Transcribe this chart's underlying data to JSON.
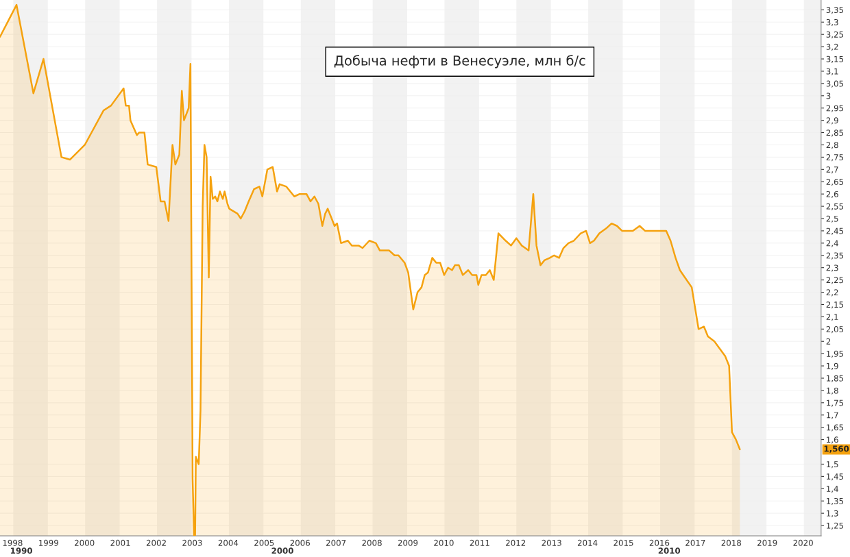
{
  "chart_data": {
    "type": "area",
    "title": "Добыча нефти в Венесуэле, млн б/с",
    "x": [
      1997.65,
      1998.11,
      1998.58,
      1998.86,
      1999.36,
      1999.6,
      2000.01,
      2000.53,
      2000.74,
      2001.09,
      2001.15,
      2001.24,
      2001.28,
      2001.46,
      2001.52,
      2001.67,
      2001.76,
      2002.0,
      2002.12,
      2002.23,
      2002.34,
      2002.45,
      2002.53,
      2002.64,
      2002.71,
      2002.77,
      2002.9,
      2002.95,
      2003.01,
      2003.05,
      2003.08,
      2003.1,
      2003.18,
      2003.23,
      2003.29,
      2003.34,
      2003.4,
      2003.46,
      2003.51,
      2003.57,
      2003.64,
      2003.7,
      2003.77,
      2003.85,
      2003.9,
      2003.98,
      2004.03,
      2004.26,
      2004.35,
      2004.46,
      2004.57,
      2004.72,
      2004.87,
      2004.95,
      2005.09,
      2005.24,
      2005.36,
      2005.43,
      2005.62,
      2005.84,
      2005.99,
      2006.18,
      2006.29,
      2006.4,
      2006.51,
      2006.62,
      2006.7,
      2006.77,
      2006.88,
      2006.96,
      2007.03,
      2007.14,
      2007.33,
      2007.44,
      2007.63,
      2007.74,
      2007.93,
      2008.11,
      2008.22,
      2008.48,
      2008.63,
      2008.74,
      2008.91,
      2009.01,
      2009.15,
      2009.27,
      2009.38,
      2009.47,
      2009.56,
      2009.68,
      2009.79,
      2009.9,
      2010.01,
      2010.12,
      2010.23,
      2010.31,
      2010.42,
      2010.53,
      2010.68,
      2010.79,
      2010.91,
      2010.96,
      2011.05,
      2011.17,
      2011.28,
      2011.39,
      2011.52,
      2011.72,
      2011.87,
      2012.02,
      2012.17,
      2012.36,
      2012.49,
      2012.58,
      2012.69,
      2012.8,
      2012.95,
      2013.07,
      2013.21,
      2013.33,
      2013.47,
      2013.62,
      2013.81,
      2013.96,
      2014.07,
      2014.18,
      2014.33,
      2014.52,
      2014.67,
      2014.82,
      2014.96,
      2015.15,
      2015.26,
      2015.45,
      2015.6,
      2015.75,
      2015.86,
      2015.97,
      2016.12,
      2016.19,
      2016.31,
      2016.45,
      2016.57,
      2016.71,
      2016.9,
      2017.09,
      2017.24,
      2017.35,
      2017.53,
      2017.68,
      2017.83,
      2017.94,
      2018.02,
      2018.13,
      2018.24
    ],
    "series": [
      {
        "color": "#f5a20f",
        "values": [
          3.24,
          3.37,
          3.01,
          3.15,
          2.75,
          2.74,
          2.8,
          2.94,
          2.96,
          3.03,
          2.96,
          2.96,
          2.9,
          2.84,
          2.85,
          2.85,
          2.72,
          2.71,
          2.57,
          2.57,
          2.49,
          2.8,
          2.72,
          2.76,
          3.02,
          2.9,
          2.95,
          3.13,
          1.44,
          1.21,
          1.21,
          1.53,
          1.5,
          1.72,
          2.55,
          2.8,
          2.75,
          2.26,
          2.67,
          2.58,
          2.59,
          2.57,
          2.61,
          2.58,
          2.61,
          2.56,
          2.54,
          2.52,
          2.5,
          2.53,
          2.57,
          2.62,
          2.63,
          2.59,
          2.7,
          2.71,
          2.61,
          2.64,
          2.63,
          2.59,
          2.6,
          2.6,
          2.57,
          2.59,
          2.56,
          2.47,
          2.52,
          2.54,
          2.5,
          2.47,
          2.48,
          2.4,
          2.41,
          2.39,
          2.39,
          2.38,
          2.41,
          2.4,
          2.37,
          2.37,
          2.35,
          2.35,
          2.32,
          2.28,
          2.13,
          2.2,
          2.22,
          2.27,
          2.28,
          2.34,
          2.32,
          2.32,
          2.27,
          2.3,
          2.29,
          2.31,
          2.31,
          2.27,
          2.29,
          2.27,
          2.27,
          2.23,
          2.27,
          2.27,
          2.29,
          2.25,
          2.44,
          2.41,
          2.39,
          2.42,
          2.39,
          2.37,
          2.6,
          2.39,
          2.31,
          2.33,
          2.34,
          2.35,
          2.34,
          2.38,
          2.4,
          2.41,
          2.44,
          2.45,
          2.4,
          2.41,
          2.44,
          2.46,
          2.48,
          2.47,
          2.45,
          2.45,
          2.45,
          2.47,
          2.45,
          2.45,
          2.45,
          2.45,
          2.45,
          2.45,
          2.41,
          2.34,
          2.29,
          2.26,
          2.22,
          2.05,
          2.06,
          2.02,
          2.0,
          1.97,
          1.94,
          1.9,
          1.63,
          1.6,
          1.56
        ]
      }
    ],
    "xlim": [
      1997.65,
      2020.5
    ],
    "xticks": [
      1998,
      1999,
      2000,
      2001,
      2002,
      2003,
      2004,
      2005,
      2006,
      2007,
      2008,
      2009,
      2010,
      2011,
      2012,
      2013,
      2014,
      2015,
      2016,
      2017,
      2018,
      2019,
      2020
    ],
    "ylim": [
      1.208,
      3.39
    ],
    "yticks": [
      {
        "value": 1.25,
        "label": "1,25"
      },
      {
        "value": 1.3,
        "label": "1,3"
      },
      {
        "value": 1.35,
        "label": "1,35"
      },
      {
        "value": 1.4,
        "label": "1,4"
      },
      {
        "value": 1.45,
        "label": "1,45"
      },
      {
        "value": 1.5,
        "label": "1,5"
      },
      {
        "value": 1.6,
        "label": "1,6"
      },
      {
        "value": 1.65,
        "label": "1,65"
      },
      {
        "value": 1.7,
        "label": "1,7"
      },
      {
        "value": 1.75,
        "label": "1,75"
      },
      {
        "value": 1.8,
        "label": "1,8"
      },
      {
        "value": 1.85,
        "label": "1,85"
      },
      {
        "value": 1.9,
        "label": "1,9"
      },
      {
        "value": 1.95,
        "label": "1,95"
      },
      {
        "value": 2,
        "label": "2"
      },
      {
        "value": 2.05,
        "label": "2,05"
      },
      {
        "value": 2.1,
        "label": "2,1"
      },
      {
        "value": 2.15,
        "label": "2,15"
      },
      {
        "value": 2.2,
        "label": "2,2"
      },
      {
        "value": 2.25,
        "label": "2,25"
      },
      {
        "value": 2.3,
        "label": "2,3"
      },
      {
        "value": 2.35,
        "label": "2,35"
      },
      {
        "value": 2.4,
        "label": "2,4"
      },
      {
        "value": 2.45,
        "label": "2,45"
      },
      {
        "value": 2.5,
        "label": "2,5"
      },
      {
        "value": 2.55,
        "label": "2,55"
      },
      {
        "value": 2.6,
        "label": "2,6"
      },
      {
        "value": 2.65,
        "label": "2,65"
      },
      {
        "value": 2.7,
        "label": "2,7"
      },
      {
        "value": 2.75,
        "label": "2,75"
      },
      {
        "value": 2.8,
        "label": "2,8"
      },
      {
        "value": 2.85,
        "label": "2,85"
      },
      {
        "value": 2.9,
        "label": "2,9"
      },
      {
        "value": 2.95,
        "label": "2,95"
      },
      {
        "value": 3,
        "label": "3"
      },
      {
        "value": 3.05,
        "label": "3,05"
      },
      {
        "value": 3.1,
        "label": "3,1"
      },
      {
        "value": 3.15,
        "label": "3,15"
      },
      {
        "value": 3.2,
        "label": "3,2"
      },
      {
        "value": 3.25,
        "label": "3,25"
      },
      {
        "value": 3.3,
        "label": "3,3"
      },
      {
        "value": 3.35,
        "label": "3,35"
      }
    ],
    "bands": [
      {
        "axis": "x",
        "from": 1998,
        "to": 1999,
        "color": "#f2f2f2"
      },
      {
        "axis": "x",
        "from": 2000,
        "to": 2001,
        "color": "#f2f2f2"
      },
      {
        "axis": "x",
        "from": 2002,
        "to": 2003,
        "color": "#f2f2f2"
      },
      {
        "axis": "x",
        "from": 2004,
        "to": 2005,
        "color": "#f2f2f2"
      },
      {
        "axis": "x",
        "from": 2006,
        "to": 2007,
        "color": "#f2f2f2"
      },
      {
        "axis": "x",
        "from": 2008,
        "to": 2009,
        "color": "#f2f2f2"
      },
      {
        "axis": "x",
        "from": 2010,
        "to": 2011,
        "color": "#f2f2f2"
      },
      {
        "axis": "x",
        "from": 2012,
        "to": 2013,
        "color": "#f2f2f2"
      },
      {
        "axis": "x",
        "from": 2014,
        "to": 2015,
        "color": "#f2f2f2"
      },
      {
        "axis": "x",
        "from": 2016,
        "to": 2017,
        "color": "#f2f2f2"
      },
      {
        "axis": "x",
        "from": 2018,
        "to": 2019,
        "color": "#f2f2f2"
      },
      {
        "axis": "x",
        "from": 2020,
        "to": 2020.5,
        "color": "#f2f2f2"
      }
    ],
    "annotations": [
      "1,560",
      "1990",
      "2000",
      "2010"
    ],
    "grid": true
  }
}
